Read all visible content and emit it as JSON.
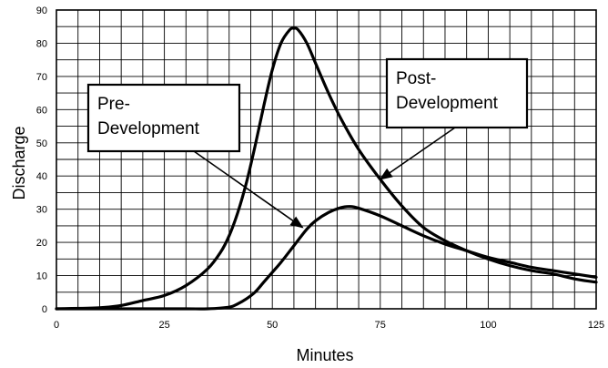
{
  "chart_data": {
    "type": "line",
    "xlabel": "Minutes",
    "ylabel": "Discharge",
    "xlim": [
      0,
      125
    ],
    "ylim": [
      0,
      90
    ],
    "x_ticks": [
      0,
      25,
      50,
      75,
      100,
      125
    ],
    "y_ticks": [
      0,
      10,
      20,
      30,
      40,
      50,
      60,
      70,
      80,
      90
    ],
    "x_minor_step": 5,
    "y_minor_step": 5,
    "grid": true,
    "series": [
      {
        "name": "Post-Development",
        "x": [
          0,
          10,
          15,
          20,
          25,
          30,
          35,
          38,
          40,
          42,
          44,
          46,
          48,
          50,
          52,
          54,
          55,
          56,
          58,
          60,
          63,
          66,
          70,
          75,
          80,
          85,
          90,
          95,
          100,
          105,
          110,
          115,
          120,
          125
        ],
        "y": [
          0,
          0.3,
          1,
          2.5,
          4,
          7,
          12,
          17,
          22,
          29,
          38,
          49,
          61,
          72,
          80,
          84,
          84.5,
          84,
          80,
          74,
          65,
          57,
          48,
          39,
          31,
          24.5,
          20.5,
          17.5,
          15,
          13,
          11.5,
          10.5,
          9,
          8
        ]
      },
      {
        "name": "Pre-Development",
        "x": [
          0,
          20,
          30,
          35,
          40,
          42,
          44,
          46,
          48,
          50,
          52,
          55,
          58,
          60,
          63,
          66,
          68,
          70,
          75,
          80,
          85,
          90,
          95,
          100,
          105,
          110,
          115,
          120,
          125
        ],
        "y": [
          0,
          0,
          0,
          0,
          0.5,
          1.5,
          3,
          5,
          8,
          11,
          14,
          19,
          24,
          26.5,
          29,
          30.5,
          30.8,
          30.3,
          28,
          25,
          22,
          19.5,
          17.5,
          15.5,
          14,
          12.5,
          11.5,
          10.5,
          9.5
        ]
      }
    ],
    "annotations": [
      {
        "lines": [
          "Pre-",
          "Development"
        ],
        "series": "Pre-Development",
        "arrow_to": [
          57,
          24.5
        ]
      },
      {
        "lines": [
          "Post-",
          "Development"
        ],
        "series": "Post-Development",
        "arrow_to": [
          75,
          39
        ]
      }
    ]
  }
}
